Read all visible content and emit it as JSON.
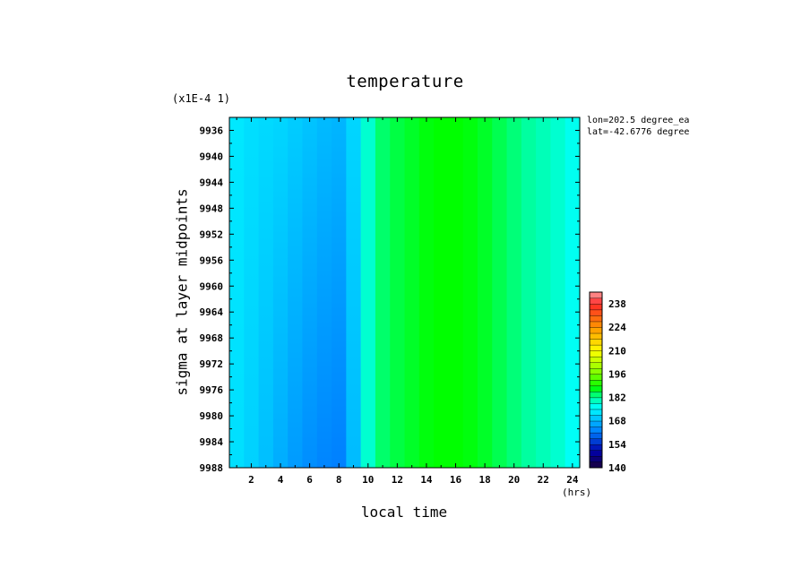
{
  "chart_data": {
    "type": "heatmap",
    "title": "temperature",
    "scale_note": "(x1E-4 1)",
    "annotations": [
      "lon=202.5 degree_ea",
      "lat=-42.6776 degree"
    ],
    "xlabel": "local time",
    "xunit": "(hrs)",
    "ylabel": "sigma at layer midpoints",
    "xlim": [
      0.5,
      24.5
    ],
    "ylim": [
      9988,
      9934
    ],
    "x_ticks": [
      2,
      4,
      6,
      8,
      10,
      12,
      14,
      16,
      18,
      20,
      22,
      24
    ],
    "y_ticks": [
      9936,
      9940,
      9944,
      9948,
      9952,
      9956,
      9960,
      9964,
      9968,
      9972,
      9976,
      9980,
      9984,
      9988
    ],
    "colorbar": {
      "min": 140,
      "max": 245,
      "tick_labels": [
        "238",
        "224",
        "210",
        "196",
        "182",
        "168",
        "154",
        "140"
      ],
      "tick_values": [
        238,
        224,
        210,
        196,
        182,
        168,
        154,
        140
      ]
    },
    "x": [
      0.5,
      1.5,
      2.5,
      3.5,
      4.5,
      5.5,
      6.5,
      7.5,
      8.5,
      9.5,
      10.5,
      11.5,
      12.5,
      13.5,
      14.5,
      15.5,
      16.5,
      17.5,
      18.5,
      19.5,
      20.5,
      21.5,
      22.5,
      23.5,
      24.5
    ],
    "y": [
      9934,
      9988
    ],
    "values": [
      [
        174,
        173,
        172,
        172,
        171,
        170,
        169,
        168,
        168,
        175,
        183,
        185,
        186,
        187,
        188,
        188,
        188,
        187,
        186,
        184,
        183,
        181,
        180,
        178,
        176
      ],
      [
        173,
        172,
        170,
        168,
        166,
        164,
        163,
        162,
        162,
        175,
        183,
        185,
        186,
        187,
        188,
        188,
        188,
        187,
        186,
        184,
        183,
        181,
        180,
        178,
        175
      ]
    ]
  },
  "colors": {
    "cyan": "#00ffff",
    "blue": "#0080ff",
    "green": "#00ff00"
  }
}
